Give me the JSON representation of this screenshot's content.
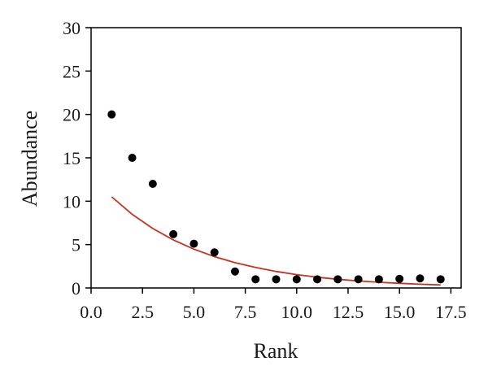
{
  "chart_data": {
    "type": "scatter",
    "title": "",
    "xlabel": "Rank",
    "ylabel": "Abundance",
    "xlim": [
      0,
      18
    ],
    "ylim": [
      0,
      30
    ],
    "xticks": [
      "0.0",
      "2.5",
      "5.0",
      "7.5",
      "10.0",
      "12.5",
      "15.0",
      "17.5"
    ],
    "xtick_values": [
      0,
      2.5,
      5,
      7.5,
      10,
      12.5,
      15,
      17.5
    ],
    "yticks": [
      "0",
      "5",
      "10",
      "15",
      "20",
      "25",
      "30"
    ],
    "ytick_values": [
      0,
      5,
      10,
      15,
      20,
      25,
      30
    ],
    "grid": false,
    "legend": "none",
    "series": [
      {
        "type": "scatter",
        "color": "#000000",
        "x": [
          1,
          2,
          3,
          4,
          5,
          6,
          7,
          8,
          9,
          10,
          11,
          12,
          13,
          14,
          15,
          16,
          17
        ],
        "y": [
          20,
          15,
          12,
          6.2,
          5.1,
          4.1,
          1.9,
          1,
          1,
          1,
          1,
          1,
          1,
          1,
          1.05,
          1.1,
          1
        ]
      },
      {
        "type": "line",
        "color": "#c8321e",
        "x": [
          1,
          2,
          3,
          4,
          5,
          6,
          7,
          8,
          9,
          10,
          11,
          12,
          13,
          14,
          15,
          16,
          17
        ],
        "y": [
          10.5,
          8.48,
          6.85,
          5.54,
          4.47,
          3.61,
          2.92,
          2.36,
          1.9,
          1.54,
          1.24,
          1.0,
          0.81,
          0.66,
          0.53,
          0.43,
          0.35
        ]
      }
    ]
  }
}
